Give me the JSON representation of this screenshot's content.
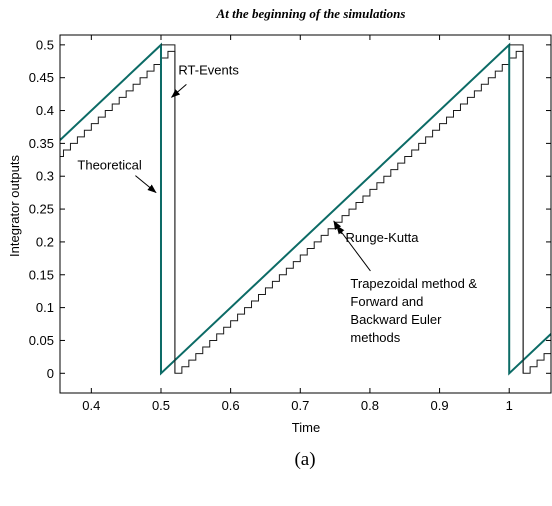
{
  "chart_data": {
    "type": "line",
    "title": "At the beginning of the simulations",
    "xlabel": "Time",
    "ylabel": "Integrator outputs",
    "caption": "(a)",
    "xlim": [
      0.355,
      1.06
    ],
    "ylim": [
      -0.03,
      0.515
    ],
    "xticks": [
      "0.4",
      "0.5",
      "0.6",
      "0.7",
      "0.8",
      "0.9",
      "1"
    ],
    "yticks": [
      "0",
      "0.05",
      "0.1",
      "0.15",
      "0.2",
      "0.25",
      "0.3",
      "0.35",
      "0.4",
      "0.45",
      "0.5"
    ],
    "grid": false,
    "colors": {
      "theoretical": "#0c6b66",
      "staircase": "#1a1a1a"
    },
    "series": [
      {
        "x": [
          0.355,
          0.5,
          0.5,
          1.0,
          1.0,
          1.06
        ],
        "y": [
          0.355,
          0.5,
          0.0,
          0.5,
          0.0,
          0.06
        ]
      },
      {
        "step": 0.01,
        "delay": 0.02
      }
    ],
    "annotations": [
      {
        "text": "RT-Events",
        "x": 0.525,
        "y": 0.455,
        "arrow_to": [
          0.515,
          0.42
        ]
      },
      {
        "text": "Theoretical",
        "x": 0.38,
        "y": 0.31,
        "arrow_to": [
          0.493,
          0.275
        ]
      },
      {
        "text": "Runge-Kutta",
        "x": 0.765,
        "y": 0.2,
        "arrow_to": [
          0.748,
          0.232
        ]
      },
      {
        "lines": [
          "Trapezoidal method &",
          "Forward and",
          "Backward Euler",
          "methods"
        ],
        "x": 0.772,
        "y": 0.13,
        "arrow_to": [
          0.752,
          0.225
        ]
      }
    ]
  }
}
